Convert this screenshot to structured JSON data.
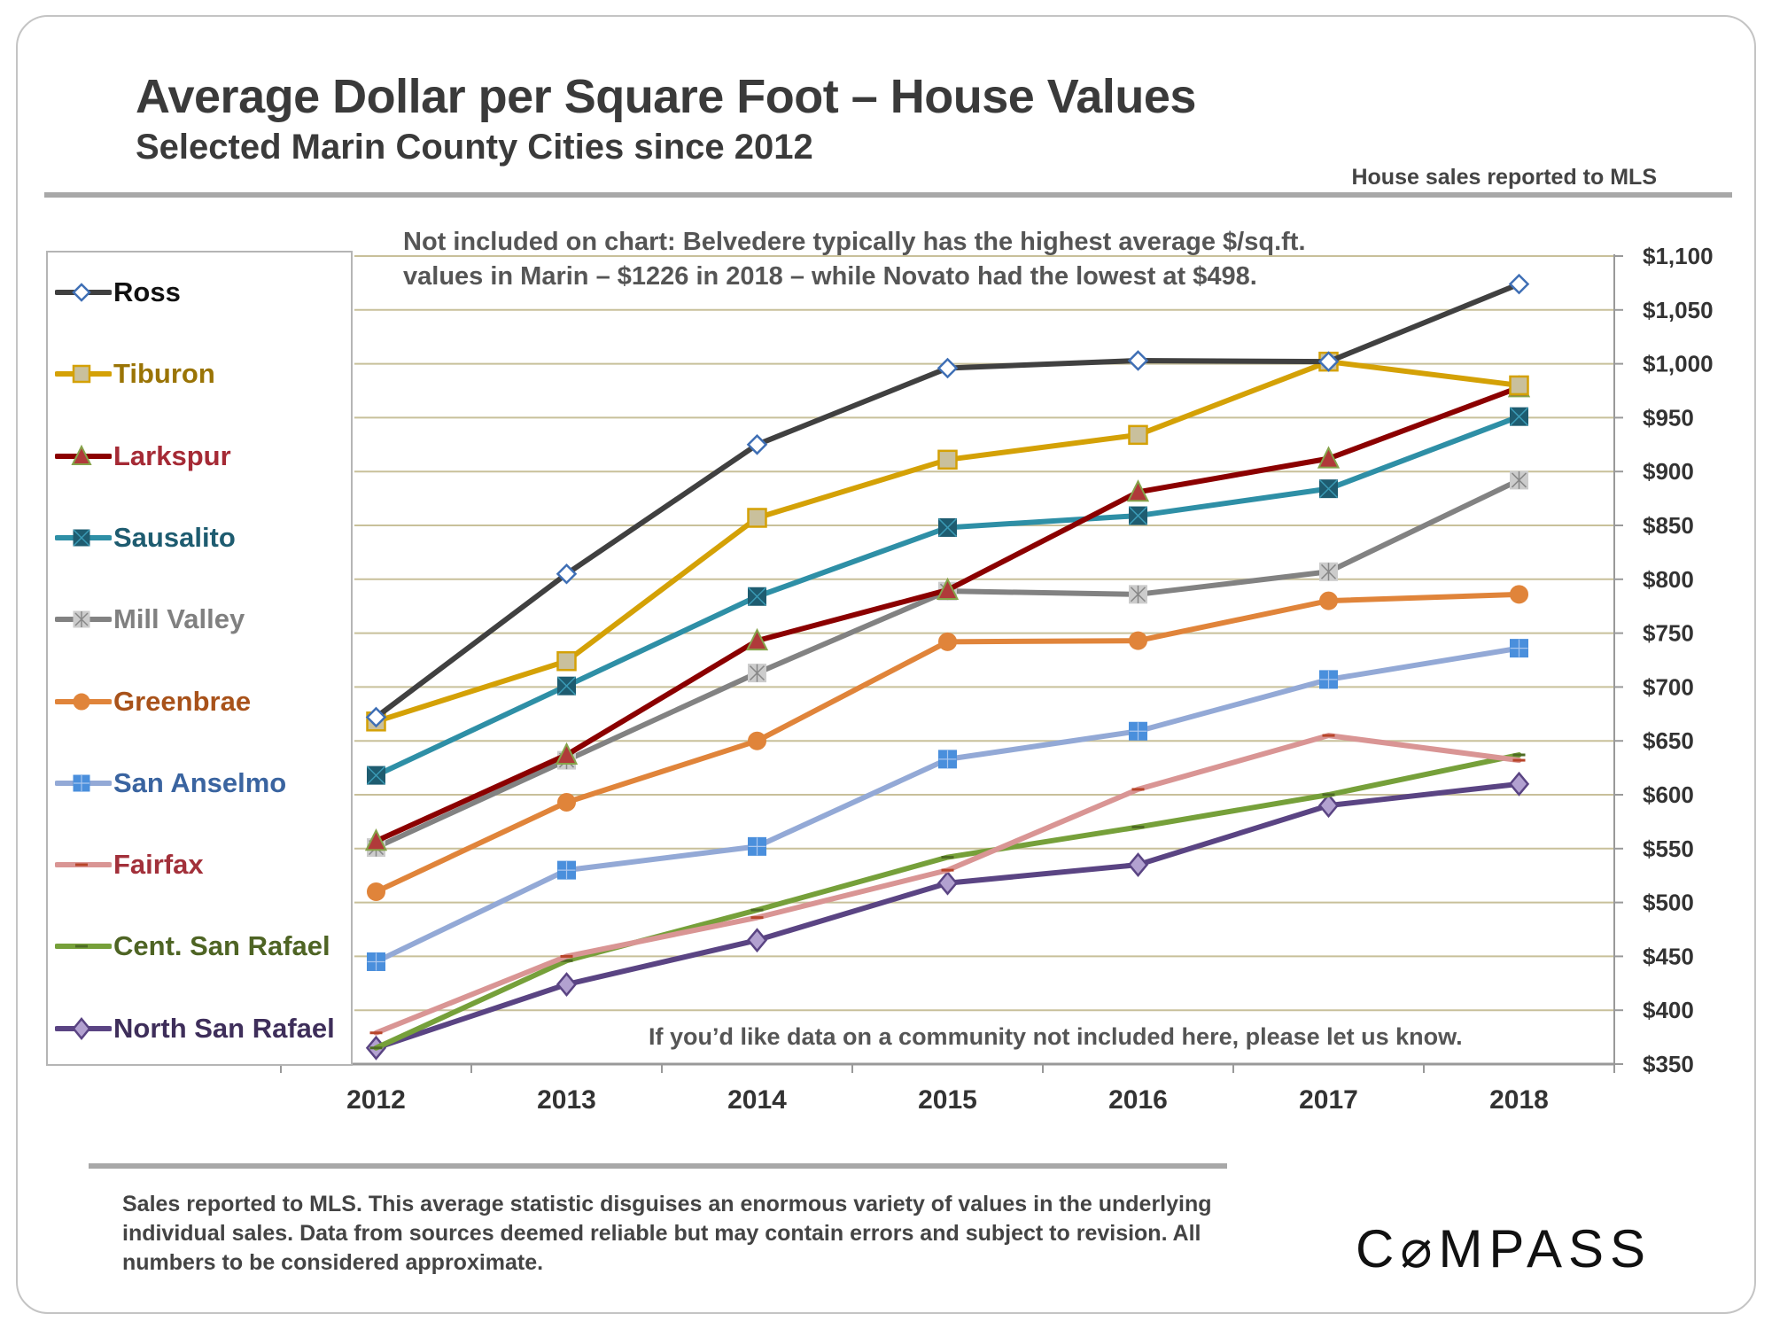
{
  "header": {
    "title": "Average Dollar per Square Foot – House Values",
    "subtitle": "Selected Marin County Cities since 2012",
    "source_note": "House sales reported to MLS"
  },
  "annotations": {
    "excluded_line1": "Not included on chart: Belvedere typically has the highest average $/sq.ft.",
    "excluded_line2": "values in Marin – $1226 in 2018 – while Novato had the lowest at $498.",
    "request": "If you’d like data on a community not included here, please let us know."
  },
  "footer": {
    "disclaimer": "Sales reported to MLS. This average statistic disguises an enormous variety of values in the underlying individual sales. Data from sources deemed reliable but may contain errors and subject to revision. All numbers to be considered approximate.",
    "logo": "C⌀MPASS"
  },
  "chart_data": {
    "type": "line",
    "title": "Average Dollar per Square Foot – House Values",
    "subtitle": "Selected Marin County Cities since 2012",
    "xlabel": "",
    "ylabel": "",
    "x": [
      "2012",
      "2013",
      "2014",
      "2015",
      "2016",
      "2017",
      "2018"
    ],
    "ylim": [
      350,
      1100
    ],
    "ytick_step": 50,
    "yticks": [
      "$350",
      "$400",
      "$450",
      "$500",
      "$550",
      "$600",
      "$650",
      "$700",
      "$750",
      "$800",
      "$850",
      "$900",
      "$950",
      "$1,000",
      "$1,050",
      "$1,100"
    ],
    "y_axis_side": "right",
    "grid": true,
    "legend_position": "left",
    "series": [
      {
        "name": "Ross",
        "color": "#404040",
        "marker": "diamond-open",
        "marker_fill": "#ffffff",
        "marker_stroke": "#3f6fb5",
        "label_color": "#111111",
        "values": [
          672,
          805,
          925,
          996,
          1003,
          1002,
          1074
        ]
      },
      {
        "name": "Tiburon",
        "color": "#d4a106",
        "marker": "square",
        "marker_fill": "#c9c09c",
        "marker_stroke": "#d4a106",
        "label_color": "#9a7406",
        "values": [
          668,
          724,
          857,
          911,
          934,
          1002,
          980
        ]
      },
      {
        "name": "Larkspur",
        "color": "#8b0000",
        "marker": "triangle",
        "marker_fill": "#b03a3a",
        "marker_stroke": "#86a34a",
        "label_color": "#a52a35",
        "values": [
          557,
          637,
          743,
          790,
          881,
          912,
          978
        ]
      },
      {
        "name": "Sausalito",
        "color": "#2e8fa6",
        "marker": "square-x",
        "marker_fill": "#1e5c70",
        "marker_stroke": "#1e5c70",
        "label_color": "#1e5c70",
        "values": [
          618,
          701,
          784,
          848,
          859,
          884,
          951
        ]
      },
      {
        "name": "Mill Valley",
        "color": "#828282",
        "marker": "square-star",
        "marker_fill": "#cccccc",
        "marker_stroke": "#888888",
        "label_color": "#808080",
        "values": [
          551,
          632,
          713,
          789,
          786,
          807,
          892
        ]
      },
      {
        "name": "Greenbrae",
        "color": "#e0843a",
        "marker": "circle",
        "marker_fill": "#e0843a",
        "marker_stroke": "#e0843a",
        "label_color": "#a8521a",
        "values": [
          510,
          593,
          650,
          742,
          743,
          780,
          786
        ]
      },
      {
        "name": "San Anselmo",
        "color": "#93a9d6",
        "marker": "square-plus",
        "marker_fill": "#4a8fdc",
        "marker_stroke": "#4a8fdc",
        "label_color": "#3a64a0",
        "values": [
          445,
          530,
          552,
          633,
          659,
          707,
          736
        ]
      },
      {
        "name": "Fairfax",
        "color": "#d99594",
        "marker": "dash",
        "marker_fill": "#b8452a",
        "marker_stroke": "#b8452a",
        "label_color": "#a2303a",
        "values": [
          379,
          450,
          486,
          530,
          605,
          655,
          632
        ]
      },
      {
        "name": "Cent. San Rafael",
        "color": "#76a03a",
        "marker": "dash",
        "marker_fill": "#4e6b24",
        "marker_stroke": "#4e6b24",
        "label_color": "#4e6424",
        "values": [
          365,
          446,
          493,
          542,
          570,
          600,
          637
        ]
      },
      {
        "name": "North San Rafael",
        "color": "#5a4483",
        "marker": "diamond",
        "marker_fill": "#b2a1d0",
        "marker_stroke": "#5a4483",
        "label_color": "#3e2e5a",
        "values": [
          365,
          424,
          465,
          518,
          535,
          590,
          610
        ]
      }
    ]
  }
}
